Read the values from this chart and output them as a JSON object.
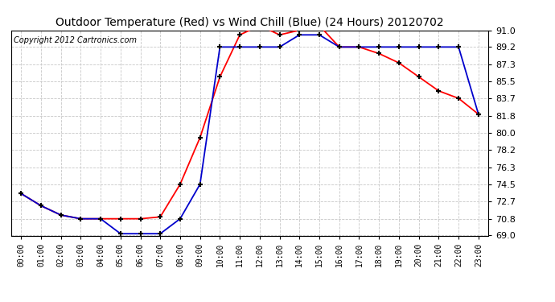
{
  "title": "Outdoor Temperature (Red) vs Wind Chill (Blue) (24 Hours) 20120702",
  "copyright": "Copyright 2012 Cartronics.com",
  "hours": [
    "00:00",
    "01:00",
    "02:00",
    "03:00",
    "04:00",
    "05:00",
    "06:00",
    "07:00",
    "08:00",
    "09:00",
    "10:00",
    "11:00",
    "12:00",
    "13:00",
    "14:00",
    "15:00",
    "16:00",
    "17:00",
    "18:00",
    "19:00",
    "20:00",
    "21:00",
    "22:00",
    "23:00"
  ],
  "red_temp": [
    73.5,
    72.2,
    71.2,
    70.8,
    70.8,
    70.8,
    70.8,
    71.0,
    74.5,
    79.5,
    86.0,
    90.5,
    91.5,
    90.5,
    91.0,
    91.5,
    89.2,
    89.2,
    88.5,
    87.5,
    86.0,
    84.5,
    83.7,
    82.0
  ],
  "blue_wind_chill": [
    73.5,
    72.2,
    71.2,
    70.8,
    70.8,
    69.2,
    69.2,
    69.2,
    70.8,
    74.5,
    89.2,
    89.2,
    89.2,
    89.2,
    90.5,
    90.5,
    89.2,
    89.2,
    89.2,
    89.2,
    89.2,
    89.2,
    89.2,
    82.0
  ],
  "ylim": [
    69.0,
    91.0
  ],
  "yticks": [
    69.0,
    70.8,
    72.7,
    74.5,
    76.3,
    78.2,
    80.0,
    81.8,
    83.7,
    85.5,
    87.3,
    89.2,
    91.0
  ],
  "bg_color": "#ffffff",
  "grid_color": "#c8c8c8",
  "red_color": "#ff0000",
  "blue_color": "#0000cc",
  "title_fontsize": 10,
  "copyright_fontsize": 7,
  "fig_width": 6.9,
  "fig_height": 3.75,
  "dpi": 100
}
